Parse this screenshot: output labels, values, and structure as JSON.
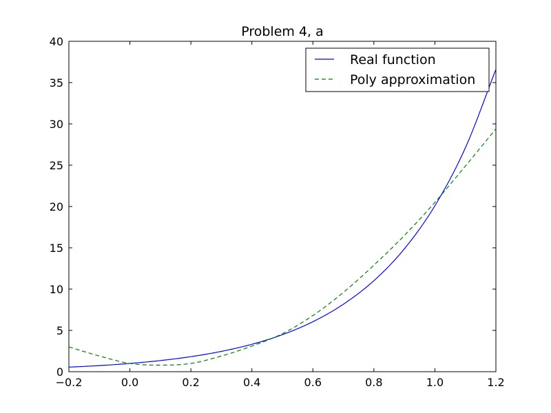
{
  "chart_data": {
    "type": "line",
    "title": "Problem 4, a",
    "xlabel": "",
    "ylabel": "",
    "xlim": [
      -0.2,
      1.2
    ],
    "ylim": [
      0,
      40
    ],
    "x_ticks": [
      -0.2,
      0.0,
      0.2,
      0.4,
      0.6,
      0.8,
      1.0,
      1.2
    ],
    "x_tick_labels": [
      "−0.2",
      "0.0",
      "0.2",
      "0.4",
      "0.6",
      "0.8",
      "1.0",
      "1.2"
    ],
    "y_ticks": [
      0,
      5,
      10,
      15,
      20,
      25,
      30,
      35,
      40
    ],
    "y_tick_labels": [
      "0",
      "5",
      "10",
      "15",
      "20",
      "25",
      "30",
      "35",
      "40"
    ],
    "grid": false,
    "legend_position": "top-right",
    "x": [
      -0.2,
      -0.1,
      0.0,
      0.1,
      0.2,
      0.3,
      0.4,
      0.5,
      0.6,
      0.7,
      0.8,
      0.9,
      1.0,
      1.1,
      1.2
    ],
    "series": [
      {
        "name": "Real function",
        "color": "#0000ff",
        "style": "solid",
        "values": [
          0.55,
          0.74,
          1.0,
          1.35,
          1.82,
          2.46,
          3.32,
          4.48,
          6.05,
          8.17,
          11.02,
          14.88,
          20.09,
          27.11,
          36.6
        ]
      },
      {
        "name": "Poly approximation",
        "color": "#008000",
        "style": "dashed",
        "values": [
          3.0,
          1.9,
          1.0,
          0.8,
          1.0,
          1.9,
          3.1,
          4.6,
          6.8,
          9.6,
          12.9,
          16.5,
          20.5,
          24.9,
          29.4
        ]
      }
    ]
  }
}
